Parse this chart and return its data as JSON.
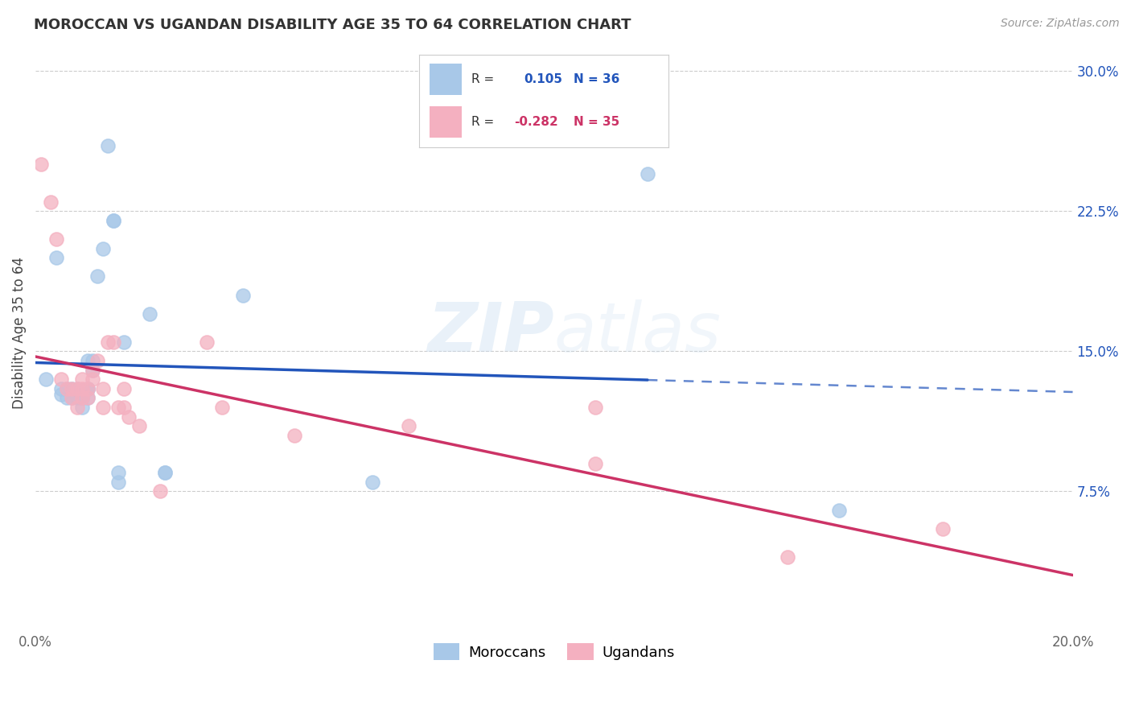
{
  "title": "MOROCCAN VS UGANDAN DISABILITY AGE 35 TO 64 CORRELATION CHART",
  "source": "Source: ZipAtlas.com",
  "ylabel": "Disability Age 35 to 64",
  "watermark": "ZIPatlas",
  "xlim": [
    0.0,
    0.2
  ],
  "ylim": [
    0.0,
    0.32
  ],
  "xticks": [
    0.0,
    0.04,
    0.08,
    0.12,
    0.16,
    0.2
  ],
  "xticklabels": [
    "0.0%",
    "",
    "",
    "",
    "",
    "20.0%"
  ],
  "yticks": [
    0.075,
    0.15,
    0.225,
    0.3
  ],
  "yticklabels": [
    "7.5%",
    "15.0%",
    "22.5%",
    "30.0%"
  ],
  "moroccan_R": 0.105,
  "moroccan_N": 36,
  "ugandan_R": -0.282,
  "ugandan_N": 35,
  "moroccan_color": "#a8c8e8",
  "ugandan_color": "#f4b0c0",
  "moroccan_line_color": "#2255bb",
  "ugandan_line_color": "#cc3366",
  "moroccan_line_solid_end": 0.118,
  "grid_color": "#cccccc",
  "background_color": "#ffffff",
  "moroccan_x": [
    0.002,
    0.004,
    0.005,
    0.005,
    0.006,
    0.006,
    0.007,
    0.007,
    0.007,
    0.008,
    0.008,
    0.009,
    0.009,
    0.009,
    0.009,
    0.01,
    0.01,
    0.01,
    0.01,
    0.011,
    0.011,
    0.012,
    0.013,
    0.014,
    0.015,
    0.015,
    0.016,
    0.016,
    0.017,
    0.022,
    0.025,
    0.025,
    0.04,
    0.065,
    0.118,
    0.155
  ],
  "moroccan_y": [
    0.135,
    0.2,
    0.127,
    0.13,
    0.125,
    0.13,
    0.13,
    0.128,
    0.125,
    0.125,
    0.13,
    0.127,
    0.125,
    0.125,
    0.12,
    0.145,
    0.13,
    0.13,
    0.125,
    0.14,
    0.145,
    0.19,
    0.205,
    0.26,
    0.22,
    0.22,
    0.08,
    0.085,
    0.155,
    0.17,
    0.085,
    0.085,
    0.18,
    0.08,
    0.245,
    0.065
  ],
  "ugandan_x": [
    0.001,
    0.003,
    0.004,
    0.005,
    0.006,
    0.007,
    0.007,
    0.008,
    0.008,
    0.009,
    0.009,
    0.009,
    0.01,
    0.01,
    0.011,
    0.011,
    0.012,
    0.013,
    0.013,
    0.014,
    0.015,
    0.016,
    0.017,
    0.017,
    0.018,
    0.02,
    0.024,
    0.033,
    0.036,
    0.05,
    0.072,
    0.108,
    0.108,
    0.145,
    0.175
  ],
  "ugandan_y": [
    0.25,
    0.23,
    0.21,
    0.135,
    0.13,
    0.125,
    0.13,
    0.13,
    0.12,
    0.125,
    0.13,
    0.135,
    0.13,
    0.125,
    0.14,
    0.135,
    0.145,
    0.13,
    0.12,
    0.155,
    0.155,
    0.12,
    0.12,
    0.13,
    0.115,
    0.11,
    0.075,
    0.155,
    0.12,
    0.105,
    0.11,
    0.12,
    0.09,
    0.04,
    0.055
  ]
}
